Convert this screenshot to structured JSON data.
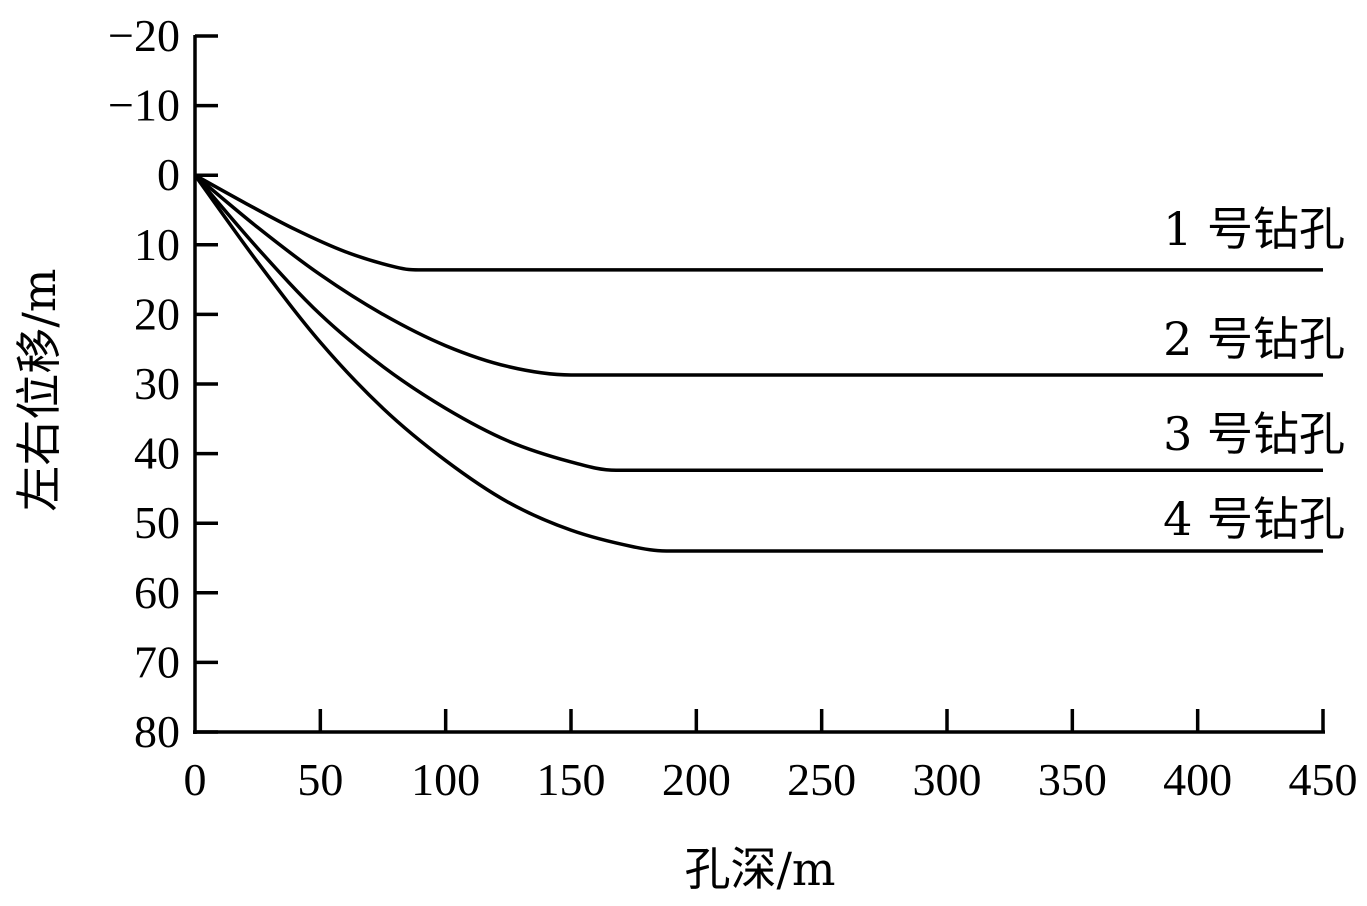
{
  "chart_data": {
    "type": "line",
    "title": "",
    "xlabel": "孔深/m",
    "ylabel": "左右位移/m",
    "xlim": [
      0,
      450
    ],
    "ylim": [
      -20,
      80
    ],
    "y_inverted": true,
    "grid": false,
    "legend_position": "inline-right",
    "x_ticks": [
      0,
      50,
      100,
      150,
      200,
      250,
      300,
      350,
      400,
      450
    ],
    "y_ticks": [
      -20,
      -10,
      0,
      10,
      20,
      30,
      40,
      50,
      60,
      70,
      80
    ],
    "x_tick_labels": [
      "0",
      "50",
      "100",
      "150",
      "200",
      "250",
      "300",
      "350",
      "400",
      "450"
    ],
    "y_tick_labels": [
      "−20",
      "−10",
      "0",
      "10",
      "20",
      "30",
      "40",
      "50",
      "60",
      "70",
      "80"
    ],
    "series": [
      {
        "name": "1 号钻孔",
        "color": "#000000",
        "x": [
          0,
          20,
          40,
          60,
          80,
          90,
          150,
          250,
          350,
          450
        ],
        "values": [
          0,
          4.0,
          7.8,
          11.0,
          13.2,
          13.6,
          13.6,
          13.6,
          13.6,
          13.6
        ]
      },
      {
        "name": "2 号钻孔",
        "color": "#000000",
        "x": [
          0,
          25,
          50,
          75,
          100,
          125,
          150,
          250,
          350,
          450
        ],
        "values": [
          0,
          7.5,
          14.3,
          20.0,
          24.5,
          27.5,
          28.7,
          28.7,
          28.7,
          28.7
        ]
      },
      {
        "name": "3 号钻孔",
        "color": "#000000",
        "x": [
          0,
          25,
          50,
          75,
          100,
          125,
          150,
          168,
          250,
          350,
          450
        ],
        "values": [
          0,
          10.5,
          20.0,
          27.5,
          33.5,
          38.2,
          41.2,
          42.4,
          42.4,
          42.4,
          42.4
        ]
      },
      {
        "name": "4 号钻孔",
        "color": "#000000",
        "x": [
          0,
          25,
          50,
          75,
          100,
          125,
          150,
          175,
          190,
          250,
          350,
          450
        ],
        "values": [
          0,
          12.5,
          24.0,
          33.5,
          41.0,
          47.0,
          51.0,
          53.4,
          54.0,
          54.0,
          54.0,
          54.0
        ]
      }
    ]
  },
  "labels": {
    "series": [
      "1 号钻孔",
      "2 号钻孔",
      "3 号钻孔",
      "4 号钻孔"
    ]
  }
}
